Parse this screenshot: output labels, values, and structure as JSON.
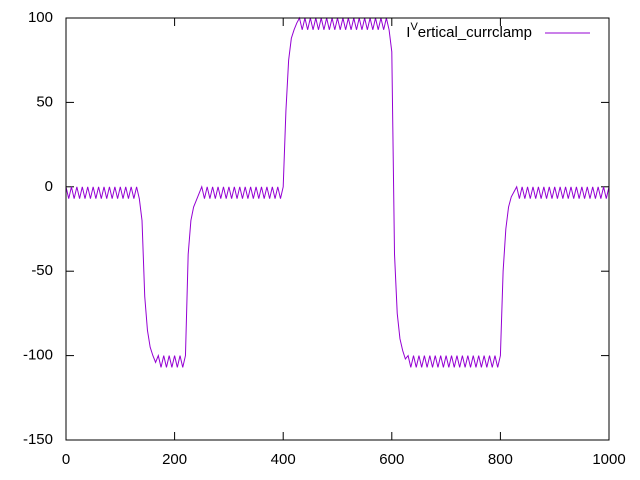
{
  "chart_data": {
    "type": "line",
    "x": [
      0,
      5,
      10,
      15,
      20,
      25,
      30,
      35,
      40,
      45,
      50,
      55,
      60,
      65,
      70,
      75,
      80,
      85,
      90,
      95,
      100,
      105,
      110,
      115,
      120,
      125,
      130,
      135,
      140,
      145,
      150,
      155,
      160,
      165,
      170,
      175,
      180,
      185,
      190,
      195,
      200,
      205,
      210,
      215,
      220,
      225,
      230,
      235,
      240,
      245,
      250,
      255,
      260,
      265,
      270,
      275,
      280,
      285,
      290,
      295,
      300,
      305,
      310,
      315,
      320,
      325,
      330,
      335,
      340,
      345,
      350,
      355,
      360,
      365,
      370,
      375,
      380,
      385,
      390,
      395,
      400,
      405,
      410,
      415,
      420,
      425,
      430,
      435,
      440,
      445,
      450,
      455,
      460,
      465,
      470,
      475,
      480,
      485,
      490,
      495,
      500,
      505,
      510,
      515,
      520,
      525,
      530,
      535,
      540,
      545,
      550,
      555,
      560,
      565,
      570,
      575,
      580,
      585,
      590,
      595,
      600,
      605,
      610,
      615,
      620,
      625,
      630,
      635,
      640,
      645,
      650,
      655,
      660,
      665,
      670,
      675,
      680,
      685,
      690,
      695,
      700,
      705,
      710,
      715,
      720,
      725,
      730,
      735,
      740,
      745,
      750,
      755,
      760,
      765,
      770,
      775,
      780,
      785,
      790,
      795,
      800,
      805,
      810,
      815,
      820,
      825,
      830,
      835,
      840,
      845,
      850,
      855,
      860,
      865,
      870,
      875,
      880,
      885,
      890,
      895,
      900,
      905,
      910,
      915,
      920,
      925,
      930,
      935,
      940,
      945,
      950,
      955,
      960,
      965,
      970,
      975,
      980,
      985,
      990,
      995,
      1000
    ],
    "series": [
      {
        "name": "IVertical_currclamp",
        "color": "#9400d3",
        "values": [
          0,
          -7,
          0,
          -7,
          0,
          -7,
          0,
          -7,
          0,
          -7,
          0,
          -7,
          0,
          -7,
          0,
          -7,
          0,
          -7,
          0,
          -7,
          0,
          -7,
          0,
          -7,
          0,
          -7,
          0,
          -7,
          -20,
          -65,
          -85,
          -95,
          -100,
          -104,
          -100,
          -107,
          -100,
          -107,
          -100,
          -107,
          -100,
          -107,
          -100,
          -107,
          -100,
          -40,
          -20,
          -12,
          -8,
          -4,
          0,
          -7,
          0,
          -7,
          0,
          -7,
          0,
          -7,
          0,
          -7,
          0,
          -7,
          0,
          -7,
          0,
          -7,
          0,
          -7,
          0,
          -7,
          0,
          -7,
          0,
          -7,
          0,
          -7,
          0,
          -7,
          0,
          -7,
          0,
          45,
          75,
          88,
          93,
          97,
          100,
          93,
          100,
          93,
          100,
          93,
          100,
          93,
          100,
          93,
          100,
          93,
          100,
          93,
          100,
          93,
          100,
          93,
          100,
          93,
          100,
          93,
          100,
          93,
          100,
          93,
          100,
          93,
          100,
          93,
          100,
          93,
          100,
          93,
          80,
          -40,
          -75,
          -90,
          -97,
          -102,
          -100,
          -107,
          -100,
          -107,
          -100,
          -107,
          -100,
          -107,
          -100,
          -107,
          -100,
          -107,
          -100,
          -107,
          -100,
          -107,
          -100,
          -107,
          -100,
          -107,
          -100,
          -107,
          -100,
          -107,
          -100,
          -107,
          -100,
          -107,
          -100,
          -107,
          -100,
          -107,
          -100,
          -107,
          -100,
          -50,
          -25,
          -12,
          -6,
          -3,
          0,
          -7,
          0,
          -7,
          0,
          -7,
          0,
          -7,
          0,
          -7,
          0,
          -7,
          0,
          -7,
          0,
          -7,
          0,
          -7,
          0,
          -7,
          0,
          -7,
          0,
          -7,
          0,
          -7,
          0,
          -7,
          0,
          -7,
          0,
          -7,
          0,
          -7,
          0
        ]
      }
    ],
    "xlim": [
      0,
      1000
    ],
    "xticks": [
      0,
      200,
      400,
      600,
      800,
      1000
    ],
    "ylim": [
      -150,
      100
    ],
    "yticks": [
      -150,
      -100,
      -50,
      0,
      50,
      100
    ],
    "legend": "top-right"
  }
}
